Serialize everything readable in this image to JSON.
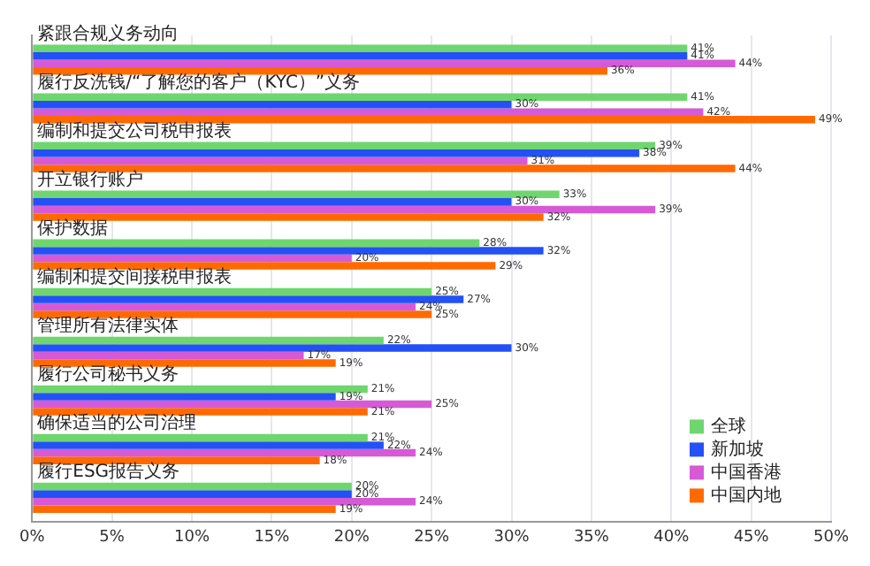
{
  "chart_data": {
    "type": "bar",
    "orientation": "horizontal",
    "categories": [
      "紧跟合规义务动向",
      "履行反洗钱/“了解您的客户（KYC）”义务",
      "编制和提交公司税申报表",
      "开立银行账户",
      "保护数据",
      "编制和提交间接税申报表",
      "管理所有法律实体",
      "履行公司秘书义务",
      "确保适当的公司治理",
      "履行ESG报告义务"
    ],
    "series": [
      {
        "name": "全球",
        "color": "#6fd66f",
        "values": [
          41,
          41,
          39,
          33,
          28,
          25,
          22,
          21,
          21,
          20
        ],
        "value_labels": [
          "41%",
          "41%",
          "39%",
          "33%",
          "28%",
          "25%",
          "22%",
          "21%",
          "21%",
          "20%"
        ]
      },
      {
        "name": "新加坡",
        "color": "#2451f5",
        "values": [
          41,
          30,
          38,
          30,
          32,
          27,
          30,
          19,
          22,
          20
        ],
        "value_labels": [
          "41%",
          "30%",
          "38%",
          "30%",
          "32%",
          "27%",
          "30%",
          "19%",
          "22%",
          "20%"
        ]
      },
      {
        "name": "中国香港",
        "color": "#d65ad6",
        "values": [
          44,
          42,
          31,
          39,
          20,
          24,
          17,
          25,
          24,
          24
        ],
        "value_labels": [
          "44%",
          "42%",
          "31%",
          "39%",
          "20%",
          "24%",
          "17%",
          "25%",
          "24%",
          "24%"
        ]
      },
      {
        "name": "中国内地",
        "color": "#ff6a00",
        "values": [
          36,
          49,
          44,
          32,
          29,
          25,
          19,
          21,
          18,
          19
        ],
        "value_labels": [
          "36%",
          "49%",
          "44%",
          "32%",
          "29%",
          "25%",
          "19%",
          "21%",
          "18%",
          "19%"
        ]
      }
    ],
    "xlim": [
      0,
      50
    ],
    "xticks": [
      {
        "value": 0,
        "label": "0%"
      },
      {
        "value": 5,
        "label": "5%"
      },
      {
        "value": 10,
        "label": "10%"
      },
      {
        "value": 15,
        "label": "15%"
      },
      {
        "value": 20,
        "label": "20%"
      },
      {
        "value": 25,
        "label": "25%"
      },
      {
        "value": 30,
        "label": "30%"
      },
      {
        "value": 35,
        "label": "35%"
      },
      {
        "value": 40,
        "label": "40%"
      },
      {
        "value": 45,
        "label": "45%"
      },
      {
        "value": 50,
        "label": "50%"
      }
    ],
    "grid": "x",
    "legend": "bottom right"
  }
}
